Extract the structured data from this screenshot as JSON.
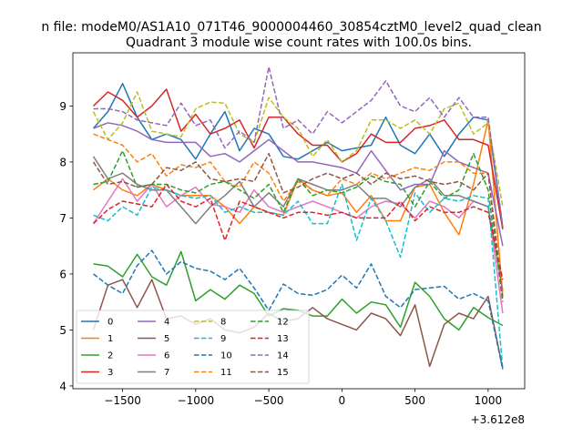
{
  "chart_data": {
    "type": "line",
    "suptitle": "n file: modeM0/AS1A10_071T46_9000004460_30854cztM0_level2_quad_clean",
    "title": "Quadrant 3 module wise count rates with 100.0s bins.",
    "xlabel": "",
    "ylabel": "",
    "x_offset_label": "+3.612e8",
    "xlim": [
      -1840,
      1250
    ],
    "ylim": [
      3.95,
      9.95
    ],
    "xticks": [
      -1500,
      -1000,
      -500,
      0,
      500,
      1000
    ],
    "xtick_labels": [
      "−1500",
      "−1000",
      "−500",
      "0",
      "500",
      "1000"
    ],
    "yticks": [
      4,
      5,
      6,
      7,
      8,
      9
    ],
    "ytick_labels": [
      "4",
      "5",
      "6",
      "7",
      "8",
      "9"
    ],
    "grid": false,
    "legend_position": "lower-left",
    "x": [
      -1700,
      -1600,
      -1500,
      -1400,
      -1300,
      -1200,
      -1100,
      -1000,
      -900,
      -800,
      -700,
      -600,
      -500,
      -400,
      -300,
      -200,
      -100,
      0,
      100,
      200,
      300,
      400,
      500,
      600,
      700,
      800,
      900,
      1000,
      1100
    ],
    "series": [
      {
        "name": "0",
        "color": "#1f77b4",
        "dash": "solid",
        "values": [
          8.6,
          8.9,
          9.4,
          8.8,
          8.4,
          8.5,
          8.4,
          8.05,
          8.5,
          8.9,
          8.2,
          8.6,
          8.5,
          8.1,
          8.05,
          8.2,
          8.35,
          8.2,
          8.25,
          8.3,
          8.8,
          8.3,
          8.15,
          8.5,
          8.1,
          8.5,
          8.8,
          8.75,
          6.8
        ]
      },
      {
        "name": "1",
        "color": "#ff7f0e",
        "dash": "solid",
        "values": [
          7.5,
          7.7,
          7.5,
          7.4,
          7.6,
          7.5,
          7.4,
          7.4,
          7.4,
          7.2,
          6.9,
          7.2,
          7.1,
          7.05,
          7.7,
          7.5,
          7.4,
          7.45,
          7.1,
          7.4,
          6.95,
          6.95,
          7.55,
          7.6,
          7.1,
          6.7,
          7.6,
          8.75,
          5.6
        ]
      },
      {
        "name": "2",
        "color": "#2ca02c",
        "dash": "solid",
        "values": [
          6.18,
          6.14,
          5.95,
          6.35,
          5.95,
          5.8,
          6.4,
          5.52,
          5.72,
          5.55,
          5.8,
          5.65,
          5.25,
          5.38,
          5.35,
          5.25,
          5.25,
          5.55,
          5.3,
          5.5,
          5.45,
          5.05,
          5.85,
          5.6,
          5.2,
          5.0,
          5.4,
          5.22,
          5.08
        ]
      },
      {
        "name": "3",
        "color": "#d62728",
        "dash": "solid",
        "values": [
          9.0,
          9.25,
          9.1,
          8.8,
          9.0,
          9.3,
          8.55,
          8.85,
          8.5,
          8.6,
          8.75,
          8.25,
          8.8,
          8.8,
          8.5,
          8.3,
          8.3,
          8.0,
          8.15,
          8.5,
          8.35,
          8.35,
          8.6,
          8.65,
          8.75,
          8.4,
          8.4,
          8.3,
          6.8
        ]
      },
      {
        "name": "4",
        "color": "#9467bd",
        "dash": "solid",
        "values": [
          8.6,
          8.7,
          8.65,
          8.55,
          8.4,
          8.35,
          8.35,
          8.35,
          8.1,
          8.15,
          8.0,
          8.2,
          8.4,
          8.2,
          8.0,
          8.0,
          7.95,
          7.9,
          7.8,
          8.2,
          7.85,
          7.5,
          7.6,
          7.6,
          8.2,
          8.0,
          7.9,
          7.8,
          6.5
        ]
      },
      {
        "name": "5",
        "color": "#8c564b",
        "dash": "solid",
        "values": [
          5.0,
          5.8,
          5.9,
          5.4,
          5.9,
          5.2,
          5.25,
          5.1,
          5.2,
          5.0,
          4.95,
          5.05,
          5.3,
          5.15,
          5.2,
          5.4,
          5.2,
          5.1,
          5.0,
          5.3,
          5.2,
          4.9,
          5.45,
          4.35,
          5.1,
          5.3,
          5.2,
          5.6,
          4.3
        ]
      },
      {
        "name": "6",
        "color": "#e377c2",
        "dash": "solid",
        "values": [
          6.9,
          7.3,
          7.7,
          7.3,
          7.6,
          7.2,
          7.4,
          7.55,
          7.25,
          7.2,
          7.1,
          7.5,
          7.2,
          7.1,
          7.2,
          7.3,
          7.2,
          7.1,
          7.0,
          7.2,
          7.3,
          7.25,
          7.0,
          7.3,
          7.2,
          7.0,
          7.3,
          7.2,
          5.3
        ]
      },
      {
        "name": "7",
        "color": "#7f7f7f",
        "dash": "solid",
        "values": [
          8.1,
          7.7,
          7.8,
          7.6,
          7.5,
          7.5,
          7.2,
          6.9,
          7.2,
          7.4,
          7.65,
          7.2,
          7.45,
          7.2,
          7.7,
          7.6,
          7.5,
          7.5,
          7.6,
          7.35,
          7.35,
          7.2,
          7.55,
          7.7,
          7.4,
          7.4,
          7.3,
          7.2,
          5.7
        ]
      },
      {
        "name": "8",
        "color": "#bcbd22",
        "dash": "dashed",
        "values": [
          8.9,
          8.4,
          8.7,
          9.25,
          8.55,
          8.5,
          8.45,
          8.95,
          9.07,
          9.05,
          8.5,
          8.35,
          9.15,
          8.8,
          8.6,
          8.1,
          8.4,
          8.0,
          8.2,
          8.75,
          8.75,
          8.6,
          8.75,
          8.5,
          8.95,
          9.05,
          8.5,
          8.7,
          7.2
        ]
      },
      {
        "name": "9",
        "color": "#17becf",
        "dash": "dashed",
        "values": [
          7.05,
          6.95,
          7.2,
          7.05,
          7.55,
          7.5,
          7.4,
          7.35,
          7.4,
          7.1,
          7.2,
          7.1,
          7.1,
          7.05,
          7.3,
          6.9,
          6.9,
          7.6,
          6.6,
          7.35,
          6.95,
          6.3,
          7.45,
          7.1,
          7.35,
          7.3,
          7.4,
          7.35,
          4.3
        ]
      },
      {
        "name": "10",
        "color": "#1f77b4",
        "dash": "dashed",
        "values": [
          6.0,
          5.8,
          5.65,
          6.15,
          6.42,
          6.0,
          6.22,
          6.1,
          6.05,
          5.9,
          6.1,
          5.75,
          5.35,
          5.82,
          5.65,
          5.62,
          5.72,
          5.98,
          5.75,
          6.18,
          5.6,
          5.4,
          5.72,
          5.75,
          5.78,
          5.55,
          5.65,
          5.52,
          4.3
        ]
      },
      {
        "name": "11",
        "color": "#ff7f0e",
        "dash": "dashed",
        "values": [
          8.5,
          8.4,
          8.3,
          8.0,
          8.15,
          7.75,
          7.95,
          7.9,
          8.0,
          7.65,
          7.55,
          8.0,
          7.8,
          7.3,
          7.65,
          7.5,
          7.4,
          7.7,
          7.6,
          7.8,
          7.7,
          7.8,
          7.9,
          7.85,
          8.0,
          8.0,
          7.8,
          7.8,
          5.7
        ]
      },
      {
        "name": "12",
        "color": "#2ca02c",
        "dash": "dashed",
        "values": [
          7.6,
          7.65,
          8.2,
          7.55,
          7.6,
          7.6,
          7.5,
          7.45,
          7.6,
          7.65,
          7.5,
          7.35,
          7.6,
          7.1,
          7.7,
          7.4,
          7.5,
          7.45,
          7.55,
          7.75,
          7.65,
          7.6,
          7.2,
          7.65,
          7.35,
          7.5,
          8.15,
          7.5,
          5.5
        ]
      },
      {
        "name": "13",
        "color": "#d62728",
        "dash": "dashed",
        "values": [
          6.9,
          7.15,
          7.3,
          7.25,
          7.2,
          7.6,
          7.3,
          7.2,
          7.35,
          6.6,
          7.3,
          7.2,
          7.1,
          7.0,
          7.1,
          7.1,
          7.05,
          7.1,
          7.0,
          7.0,
          7.0,
          7.3,
          6.95,
          7.2,
          7.1,
          7.1,
          7.2,
          7.1,
          5.9
        ]
      },
      {
        "name": "14",
        "color": "#9467bd",
        "dash": "dashed",
        "values": [
          8.95,
          8.95,
          8.9,
          8.75,
          8.7,
          8.65,
          9.05,
          8.65,
          8.75,
          8.25,
          8.55,
          8.35,
          9.7,
          8.6,
          8.75,
          8.5,
          8.9,
          8.7,
          8.9,
          9.1,
          9.45,
          9.0,
          8.9,
          9.15,
          8.8,
          9.15,
          8.8,
          8.8,
          6.85
        ]
      },
      {
        "name": "15",
        "color": "#8c564b",
        "dash": "dashed",
        "values": [
          8.0,
          7.6,
          7.65,
          7.55,
          7.6,
          7.9,
          7.85,
          8.0,
          7.7,
          7.65,
          7.7,
          7.65,
          8.15,
          7.45,
          7.55,
          7.7,
          7.8,
          7.7,
          7.8,
          7.6,
          7.8,
          7.7,
          7.75,
          7.65,
          7.6,
          7.65,
          7.5,
          7.8,
          5.55
        ]
      }
    ]
  }
}
